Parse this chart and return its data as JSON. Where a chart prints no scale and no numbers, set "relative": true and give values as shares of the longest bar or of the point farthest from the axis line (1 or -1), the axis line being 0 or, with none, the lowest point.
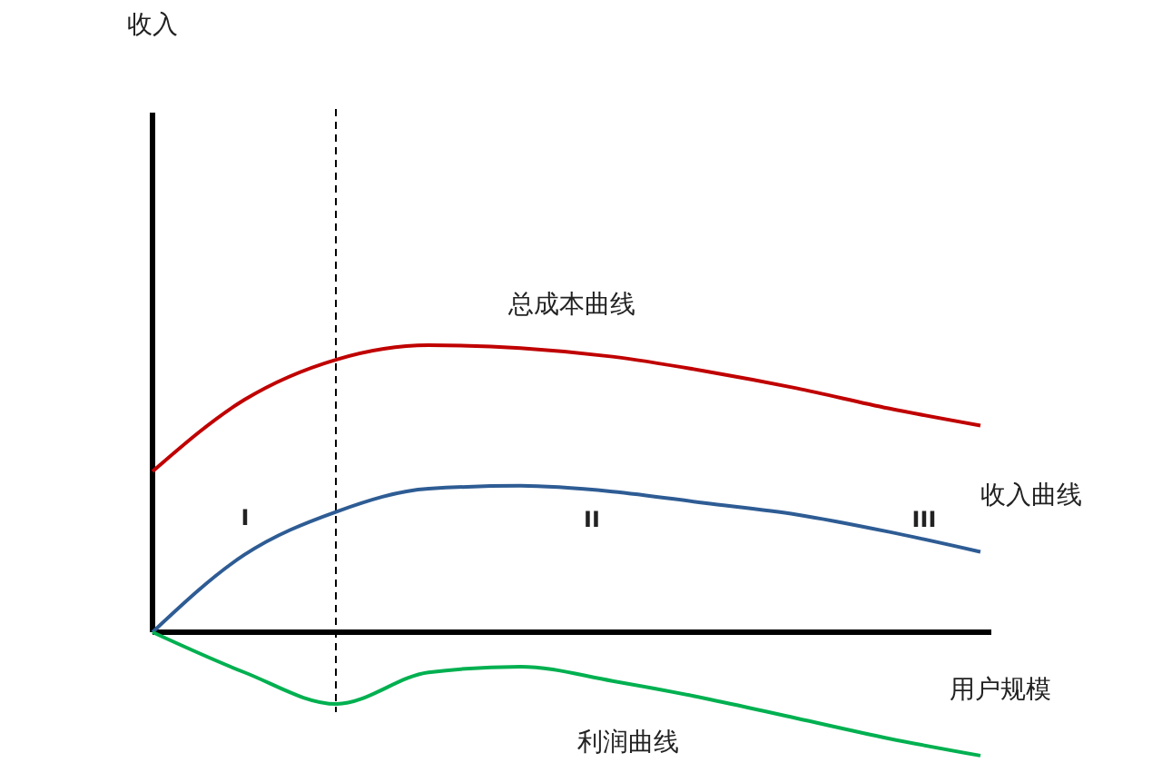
{
  "chart_data": {
    "type": "line",
    "relative": true,
    "xlabel": "用户规模",
    "categories": [
      null,
      null,
      null,
      null,
      null,
      null,
      null,
      null,
      null,
      null
    ],
    "series": [
      {
        "name": "总成本曲线",
        "color": "#c00000",
        "values": [
          0.56,
          0.81,
          0.95,
          1,
          0.99,
          0.96,
          0.91,
          0.85,
          0.78,
          0.72
        ]
      },
      {
        "name": "收入曲线",
        "color": "#2e5c94",
        "values": [
          0,
          0.27,
          0.42,
          0.5,
          0.51,
          0.49,
          0.45,
          0.41,
          0.35,
          0.28
        ]
      },
      {
        "name": "利润曲线",
        "color": "#00b050",
        "values": [
          0,
          -0.14,
          -0.25,
          -0.14,
          -0.12,
          -0.17,
          -0.23,
          -0.3,
          -0.37,
          -0.43
        ]
      }
    ],
    "annotations": [
      "收入",
      "I",
      "II",
      "III"
    ],
    "marker": "none",
    "line_style": "solid"
  }
}
